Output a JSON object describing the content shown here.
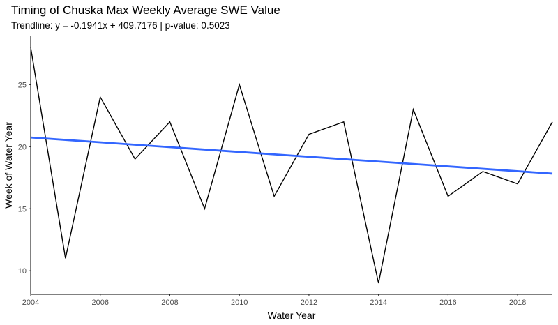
{
  "chart_data": {
    "type": "line",
    "title": "Timing of Chuska Max Weekly Average SWE Value",
    "subtitle": "Trendline: y = -0.1941x +  409.7176 | p-value: 0.5023",
    "xlabel": "Water Year",
    "ylabel": "Week of Water Year",
    "xlim": [
      2004,
      2019
    ],
    "ylim": [
      8.1,
      28.9
    ],
    "x_ticks": [
      2004,
      2006,
      2008,
      2010,
      2012,
      2014,
      2016,
      2018
    ],
    "y_ticks": [
      10,
      15,
      20,
      25
    ],
    "x": [
      2004,
      2005,
      2006,
      2007,
      2008,
      2009,
      2010,
      2011,
      2012,
      2013,
      2014,
      2015,
      2016,
      2017,
      2018,
      2019
    ],
    "series": [
      {
        "values": [
          28,
          11,
          24,
          19,
          22,
          15,
          25,
          16,
          21,
          22,
          9,
          23,
          16,
          18,
          17,
          22
        ],
        "color": "#000000"
      }
    ],
    "trendline": {
      "slope": -0.1941,
      "intercept": 409.7176,
      "color": "#3366FF"
    },
    "grid": false
  }
}
